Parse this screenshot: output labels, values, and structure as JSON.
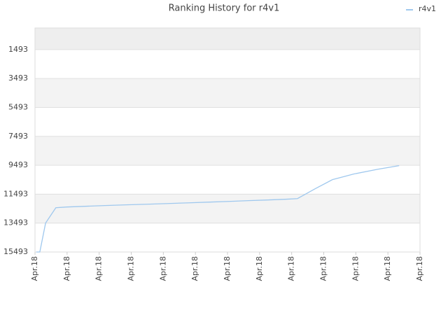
{
  "chart_data": {
    "type": "line",
    "title": "Ranking History for r4v1",
    "x": [
      0.04,
      0.15,
      0.33,
      0.65,
      1.0,
      1.57,
      2.18,
      2.84,
      3.49,
      4.15,
      4.8,
      5.45,
      6.11,
      6.65,
      7.31,
      7.85,
      8.18,
      8.73,
      9.27,
      9.93,
      10.69,
      11.35
    ],
    "series": [
      {
        "name": "r4v1",
        "color": "#9fc8ee",
        "values": [
          15493,
          15493,
          13493,
          12430,
          12380,
          12330,
          12280,
          12230,
          12190,
          12140,
          12090,
          12040,
          11990,
          11940,
          11890,
          11840,
          11800,
          11120,
          10490,
          10100,
          9770,
          9520
        ]
      }
    ],
    "xlim": [
      0,
      12
    ],
    "xticks": [
      {
        "value": 0,
        "label": "Apr.18"
      },
      {
        "value": 1,
        "label": "Apr.18"
      },
      {
        "value": 2,
        "label": "Apr.18"
      },
      {
        "value": 3,
        "label": "Apr.18"
      },
      {
        "value": 4,
        "label": "Apr.18"
      },
      {
        "value": 5,
        "label": "Apr.18"
      },
      {
        "value": 6,
        "label": "Apr.18"
      },
      {
        "value": 7,
        "label": "Apr.18"
      },
      {
        "value": 8,
        "label": "Apr.18"
      },
      {
        "value": 9,
        "label": "Apr.18"
      },
      {
        "value": 10,
        "label": "Apr.18"
      },
      {
        "value": 11,
        "label": "Apr.18"
      },
      {
        "value": 12,
        "label": "Apr.18"
      }
    ],
    "ylim": [
      15493,
      0
    ],
    "yticks": [
      1493,
      3493,
      5493,
      7493,
      9493,
      11493,
      13493,
      15493
    ],
    "grid": true,
    "legend": "top-right"
  }
}
